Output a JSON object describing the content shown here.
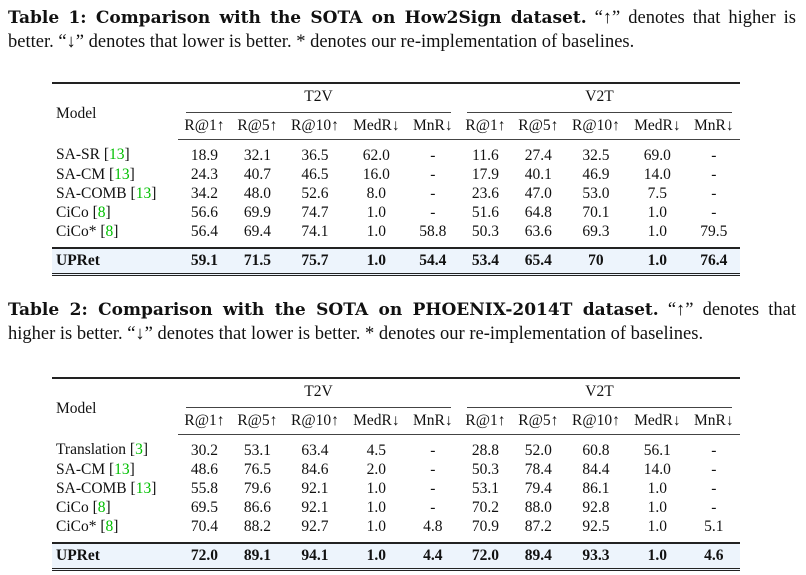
{
  "tables": [
    {
      "caption_bold": "Table 1: Comparison with the SOTA on How2Sign dataset.",
      "caption_text": " “↑” denotes that higher is better. “↓” denotes that lower is better. * denotes our re-implementation of baselines.",
      "model_header": "Model",
      "groups": [
        "T2V",
        "V2T"
      ],
      "metrics": [
        "R@1↑",
        "R@5↑",
        "R@10↑",
        "MedR↓",
        "MnR↓",
        "R@1↑",
        "R@5↑",
        "R@10↑",
        "MedR↓",
        "MnR↓"
      ],
      "rows": [
        {
          "model": "SA-SR",
          "cite": "13",
          "values": [
            "18.9",
            "32.1",
            "36.5",
            "62.0",
            "-",
            "11.6",
            "27.4",
            "32.5",
            "69.0",
            "-"
          ],
          "bold": []
        },
        {
          "model": "SA-CM",
          "cite": "13",
          "values": [
            "24.3",
            "40.7",
            "46.5",
            "16.0",
            "-",
            "17.9",
            "40.1",
            "46.9",
            "14.0",
            "-"
          ],
          "bold": []
        },
        {
          "model": "SA-COMB",
          "cite": "13",
          "values": [
            "34.2",
            "48.0",
            "52.6",
            "8.0",
            "-",
            "23.6",
            "47.0",
            "53.0",
            "7.5",
            "-"
          ],
          "bold": []
        },
        {
          "model": "CiCo",
          "cite": "8",
          "values": [
            "56.6",
            "69.9",
            "74.7",
            "1.0",
            "-",
            "51.6",
            "64.8",
            "70.1",
            "1.0",
            "-"
          ],
          "bold": [
            3,
            8
          ]
        },
        {
          "model": "CiCo*",
          "cite": "8",
          "values": [
            "56.4",
            "69.4",
            "74.1",
            "1.0",
            "58.8",
            "50.3",
            "63.6",
            "69.3",
            "1.0",
            "79.5"
          ],
          "bold": [
            3,
            8
          ]
        }
      ],
      "ours": {
        "model": "UPRet",
        "values": [
          "59.1",
          "71.5",
          "75.7",
          "1.0",
          "54.4",
          "53.4",
          "65.4",
          "70",
          "1.0",
          "76.4"
        ]
      }
    },
    {
      "caption_bold": "Table 2: Comparison with the SOTA on PHOENIX-2014T dataset.",
      "caption_text": " “↑” denotes that higher is better. “↓” denotes that lower is better. * denotes our re-implementation of baselines.",
      "model_header": "Model",
      "groups": [
        "T2V",
        "V2T"
      ],
      "metrics": [
        "R@1↑",
        "R@5↑",
        "R@10↑",
        "MedR↓",
        "MnR↓",
        "R@1↑",
        "R@5↑",
        "R@10↑",
        "MedR↓",
        "MnR↓"
      ],
      "rows": [
        {
          "model": "Translation",
          "cite": "3",
          "values": [
            "30.2",
            "53.1",
            "63.4",
            "4.5",
            "-",
            "28.8",
            "52.0",
            "60.8",
            "56.1",
            "-"
          ],
          "bold": []
        },
        {
          "model": "SA-CM",
          "cite": "13",
          "values": [
            "48.6",
            "76.5",
            "84.6",
            "2.0",
            "-",
            "50.3",
            "78.4",
            "84.4",
            "14.0",
            "-"
          ],
          "bold": []
        },
        {
          "model": "SA-COMB",
          "cite": "13",
          "values": [
            "55.8",
            "79.6",
            "92.1",
            "1.0",
            "-",
            "53.1",
            "79.4",
            "86.1",
            "1.0",
            "-"
          ],
          "bold": [
            3,
            8
          ]
        },
        {
          "model": "CiCo",
          "cite": "8",
          "values": [
            "69.5",
            "86.6",
            "92.1",
            "1.0",
            "-",
            "70.2",
            "88.0",
            "92.8",
            "1.0",
            "-"
          ],
          "bold": [
            3,
            8
          ]
        },
        {
          "model": "CiCo*",
          "cite": "8",
          "values": [
            "70.4",
            "88.2",
            "92.7",
            "1.0",
            "4.8",
            "70.9",
            "87.2",
            "92.5",
            "1.0",
            "5.1"
          ],
          "bold": [
            3,
            8
          ]
        }
      ],
      "ours": {
        "model": "UPRet",
        "values": [
          "72.0",
          "89.1",
          "94.1",
          "1.0",
          "4.4",
          "72.0",
          "89.4",
          "93.3",
          "1.0",
          "4.6"
        ]
      }
    }
  ],
  "colors": {
    "cite": "#00c000",
    "highlight": "#edf4fc"
  }
}
